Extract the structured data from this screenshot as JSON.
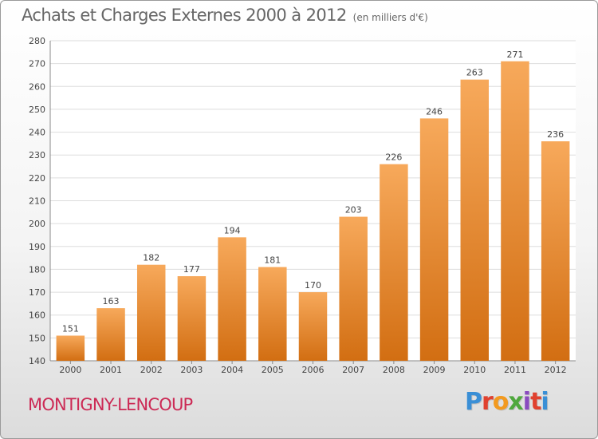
{
  "header": {
    "title": "Achats et Charges Externes 2000 à 2012",
    "subtitle": "(en milliers d'€)"
  },
  "footer": {
    "commune": "MONTIGNY-LENCOUP",
    "logo": "Proxiti",
    "logo_colors": [
      "#3a8fd6",
      "#e0412f",
      "#f29a1f",
      "#4fa83d",
      "#8a4bbf",
      "#e0412f",
      "#3a8fd6"
    ]
  },
  "chart_data": {
    "type": "bar",
    "title": "Achats et Charges Externes 2000 à 2012",
    "subtitle": "(en milliers d'€)",
    "categories": [
      "2000",
      "2001",
      "2002",
      "2003",
      "2004",
      "2005",
      "2006",
      "2007",
      "2008",
      "2009",
      "2010",
      "2011",
      "2012"
    ],
    "values": [
      151,
      163,
      182,
      177,
      194,
      181,
      170,
      203,
      226,
      246,
      263,
      271,
      236
    ],
    "ylim": [
      140,
      280
    ],
    "yticks": [
      140,
      150,
      160,
      170,
      180,
      190,
      200,
      210,
      220,
      230,
      240,
      250,
      260,
      270,
      280
    ],
    "grid": true,
    "bar_color_top": "#f7a95b",
    "bar_color_bottom": "#d26e12"
  }
}
